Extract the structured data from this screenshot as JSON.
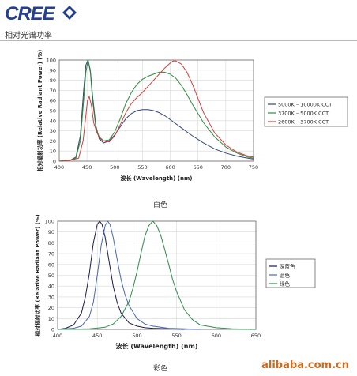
{
  "header": {
    "logo_text": "CREE",
    "section_title": "相对光谱功率"
  },
  "watermark": "alibaba.com.cn",
  "chart_data": [
    {
      "type": "line",
      "title": "",
      "caption": "白色",
      "xlabel": "波长 (Wavelength) (nm)",
      "ylabel": "相对辐射功率 (Relative Radiant Power) (%)",
      "xlim": [
        400,
        750
      ],
      "ylim": [
        0,
        100
      ],
      "xticks": [
        400,
        450,
        500,
        550,
        600,
        650,
        700,
        750
      ],
      "yticks": [
        0,
        10,
        20,
        30,
        40,
        50,
        60,
        70,
        80,
        90,
        100
      ],
      "grid": true,
      "legend_position": "right",
      "series": [
        {
          "name": "5000K – 10000K CCT",
          "color": "#35477d",
          "x": [
            400,
            420,
            430,
            438,
            444,
            448,
            452,
            456,
            460,
            466,
            472,
            480,
            490,
            500,
            510,
            520,
            530,
            540,
            550,
            560,
            570,
            580,
            590,
            600,
            620,
            640,
            660,
            680,
            700,
            720,
            740,
            750
          ],
          "y": [
            0,
            1,
            4,
            25,
            70,
            95,
            100,
            90,
            65,
            35,
            22,
            18,
            20,
            26,
            34,
            42,
            47,
            50,
            51,
            51,
            50,
            48,
            45,
            41,
            33,
            25,
            18,
            12,
            8,
            5,
            3,
            2
          ]
        },
        {
          "name": "3700K – 5000K CCT",
          "color": "#2e8b3a",
          "x": [
            400,
            420,
            430,
            438,
            444,
            448,
            452,
            456,
            460,
            466,
            472,
            480,
            490,
            500,
            510,
            520,
            530,
            540,
            550,
            560,
            570,
            580,
            590,
            600,
            610,
            620,
            630,
            640,
            660,
            680,
            700,
            720,
            740,
            750
          ],
          "y": [
            0,
            1,
            3,
            20,
            60,
            88,
            100,
            88,
            60,
            33,
            24,
            20,
            21,
            29,
            42,
            57,
            68,
            76,
            81,
            84,
            86,
            88,
            88,
            86,
            82,
            75,
            66,
            56,
            38,
            24,
            14,
            8,
            4,
            3
          ]
        },
        {
          "name": "2600K – 3700K CCT",
          "color": "#d23c3c",
          "x": [
            400,
            420,
            435,
            443,
            448,
            451,
            454,
            458,
            462,
            468,
            474,
            480,
            490,
            500,
            510,
            520,
            530,
            540,
            550,
            560,
            570,
            580,
            590,
            600,
            605,
            610,
            620,
            630,
            640,
            650,
            660,
            680,
            700,
            720,
            740,
            750
          ],
          "y": [
            0,
            1,
            3,
            20,
            45,
            60,
            64,
            55,
            38,
            28,
            22,
            20,
            19,
            25,
            36,
            48,
            57,
            63,
            68,
            74,
            80,
            86,
            92,
            97,
            99,
            99,
            96,
            88,
            76,
            62,
            48,
            28,
            16,
            9,
            5,
            4
          ]
        }
      ]
    },
    {
      "type": "line",
      "title": "",
      "caption": "彩色",
      "xlabel": "波长 (Wavelength) (nm)",
      "ylabel": "相对辐射功率 (Relative Radiant Power) (%)",
      "xlim": [
        400,
        650
      ],
      "ylim": [
        0,
        100
      ],
      "xticks": [
        400,
        450,
        500,
        550,
        600,
        650
      ],
      "yticks": [
        0,
        10,
        20,
        30,
        40,
        50,
        60,
        70,
        80,
        90,
        100
      ],
      "grid": true,
      "legend_position": "right",
      "series": [
        {
          "name": "深蓝色",
          "color": "#1a1a4a",
          "x": [
            400,
            410,
            420,
            430,
            435,
            440,
            445,
            450,
            453,
            456,
            460,
            465,
            470,
            475,
            480,
            490,
            500,
            510,
            520,
            540,
            560
          ],
          "y": [
            0,
            1,
            4,
            15,
            30,
            52,
            80,
            97,
            100,
            97,
            85,
            62,
            40,
            25,
            15,
            6,
            3,
            1.5,
            1,
            0.5,
            0
          ]
        },
        {
          "name": "蓝色",
          "color": "#4a67b5",
          "x": [
            400,
            420,
            430,
            440,
            445,
            450,
            455,
            460,
            463,
            466,
            470,
            475,
            480,
            485,
            490,
            500,
            510,
            520,
            530,
            540,
            560,
            580
          ],
          "y": [
            0,
            1,
            3,
            12,
            25,
            50,
            78,
            96,
            100,
            97,
            85,
            65,
            46,
            32,
            22,
            10,
            5,
            3,
            2,
            1,
            0.5,
            0
          ]
        },
        {
          "name": "绿色",
          "color": "#2e8b4a",
          "x": [
            400,
            440,
            460,
            470,
            480,
            490,
            495,
            500,
            505,
            510,
            515,
            520,
            525,
            530,
            535,
            540,
            545,
            550,
            560,
            570,
            580,
            600,
            620,
            650
          ],
          "y": [
            0,
            0.5,
            2,
            5,
            12,
            26,
            38,
            53,
            70,
            86,
            96,
            100,
            96,
            87,
            74,
            60,
            46,
            35,
            18,
            9,
            4,
            1.5,
            0.5,
            0
          ]
        }
      ]
    }
  ]
}
